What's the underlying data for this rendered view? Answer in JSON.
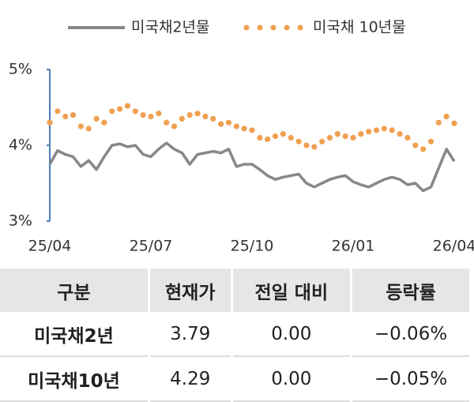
{
  "chart_data": {
    "type": "line",
    "categories": [
      "25/04",
      null,
      null,
      null,
      null,
      null,
      null,
      null,
      null,
      null,
      null,
      null,
      null,
      "25/07",
      null,
      null,
      null,
      null,
      null,
      null,
      null,
      null,
      null,
      null,
      null,
      null,
      "25/10",
      null,
      null,
      null,
      null,
      null,
      null,
      null,
      null,
      null,
      null,
      null,
      null,
      "26/01",
      null,
      null,
      null,
      null,
      null,
      null,
      null,
      null,
      null,
      null,
      null,
      null,
      "26/04"
    ],
    "series": [
      {
        "name": "미국채2년물",
        "color": "#888888",
        "style": "line",
        "values": [
          3.75,
          3.93,
          3.88,
          3.85,
          3.72,
          3.8,
          3.68,
          3.85,
          4.0,
          4.02,
          3.98,
          4.0,
          3.88,
          3.85,
          3.95,
          4.03,
          3.95,
          3.9,
          3.75,
          3.88,
          3.9,
          3.92,
          3.9,
          3.95,
          3.72,
          3.75,
          3.75,
          3.68,
          3.6,
          3.55,
          3.58,
          3.6,
          3.62,
          3.5,
          3.45,
          3.5,
          3.55,
          3.58,
          3.6,
          3.52,
          3.48,
          3.45,
          3.5,
          3.55,
          3.58,
          3.55,
          3.48,
          3.5,
          3.4,
          3.45,
          3.7,
          3.95,
          3.79
        ]
      },
      {
        "name": "미국채 10년물",
        "color": "#f0a050",
        "style": "dots",
        "values": [
          4.3,
          4.45,
          4.38,
          4.4,
          4.25,
          4.22,
          4.35,
          4.3,
          4.45,
          4.48,
          4.52,
          4.45,
          4.4,
          4.38,
          4.42,
          4.3,
          4.25,
          4.35,
          4.4,
          4.42,
          4.38,
          4.35,
          4.28,
          4.3,
          4.25,
          4.22,
          4.2,
          4.1,
          4.08,
          4.12,
          4.15,
          4.1,
          4.05,
          4.0,
          3.98,
          4.05,
          4.1,
          4.15,
          4.12,
          4.1,
          4.15,
          4.18,
          4.2,
          4.22,
          4.2,
          4.15,
          4.1,
          4.0,
          3.95,
          4.05,
          4.3,
          4.38,
          4.29
        ]
      }
    ],
    "ylim": [
      3,
      5
    ],
    "yticks": [
      {
        "value": 3,
        "label": "3%"
      },
      {
        "value": 4,
        "label": "4%"
      },
      {
        "value": 5,
        "label": "5%"
      }
    ],
    "grid": false
  },
  "table": {
    "header": [
      "구분",
      "현재가",
      "전일 대비",
      "등락률"
    ],
    "rows": [
      [
        "미국채2년",
        "3.79",
        "0.00",
        "−0.06%"
      ],
      [
        "미국채10년",
        "4.29",
        "0.00",
        "−0.05%"
      ]
    ]
  }
}
